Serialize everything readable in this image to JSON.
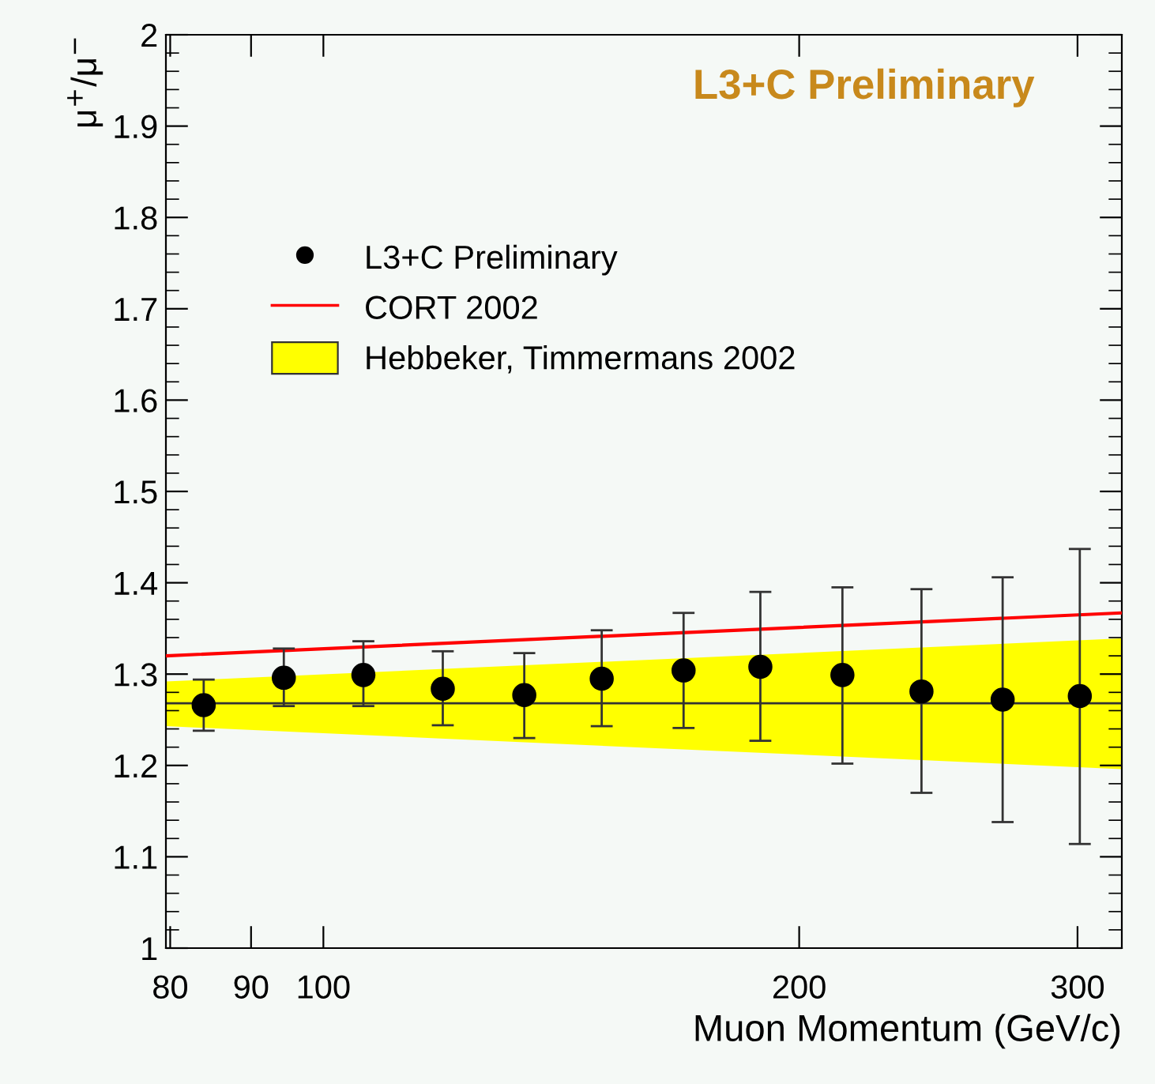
{
  "chart_data": {
    "type": "scatter",
    "xlabel": "Muon Momentum (GeV/c)",
    "ylabel": "μ$^{+}$/μ$^{−}$",
    "annotations": [
      "L3+C Preliminary"
    ],
    "log": "x",
    "xlim": [
      79.5,
      320
    ],
    "xticks": [
      80,
      90,
      100,
      200,
      300
    ],
    "ylim": [
      1,
      2
    ],
    "yticks": [
      1,
      1.1,
      1.2,
      1.3,
      1.4,
      1.5,
      1.6,
      1.7,
      1.8,
      1.9,
      2
    ],
    "grid": false,
    "legend": "left",
    "ref_lines": [
      {
        "axis": "y",
        "value": 1.268,
        "color": "#333333"
      }
    ],
    "series": [
      {
        "name": "L3+C Preliminary",
        "color": "#000000",
        "marker": "circle",
        "x": [
          84,
          94.4,
          106,
          119,
          134,
          150,
          169,
          189,
          213,
          239,
          269,
          301
        ],
        "values": [
          1.266,
          1.296,
          1.299,
          1.284,
          1.277,
          1.295,
          1.304,
          1.308,
          1.299,
          1.281,
          1.272,
          1.276
        ],
        "errors": [
          [
            1.238,
            1.294
          ],
          [
            1.265,
            1.328
          ],
          [
            1.265,
            1.336
          ],
          [
            1.244,
            1.325
          ],
          [
            1.23,
            1.323
          ],
          [
            1.243,
            1.348
          ],
          [
            1.241,
            1.367
          ],
          [
            1.227,
            1.39
          ],
          [
            1.202,
            1.395
          ],
          [
            1.17,
            1.393
          ],
          [
            1.138,
            1.406
          ],
          [
            1.114,
            1.437
          ]
        ]
      },
      {
        "name": "CORT 2002",
        "type": "line",
        "color": "#ff0000",
        "x": [
          79.5,
          320
        ],
        "values": [
          1.32,
          1.367
        ]
      },
      {
        "name": "Hebbeker, Timmermans 2002",
        "type": "area",
        "color": "#ffff00",
        "x": [
          79.5,
          320
        ],
        "values": [
          null,
          null
        ],
        "lower": [
          1.243,
          1.196
        ],
        "upper": [
          1.292,
          1.339
        ]
      }
    ]
  }
}
